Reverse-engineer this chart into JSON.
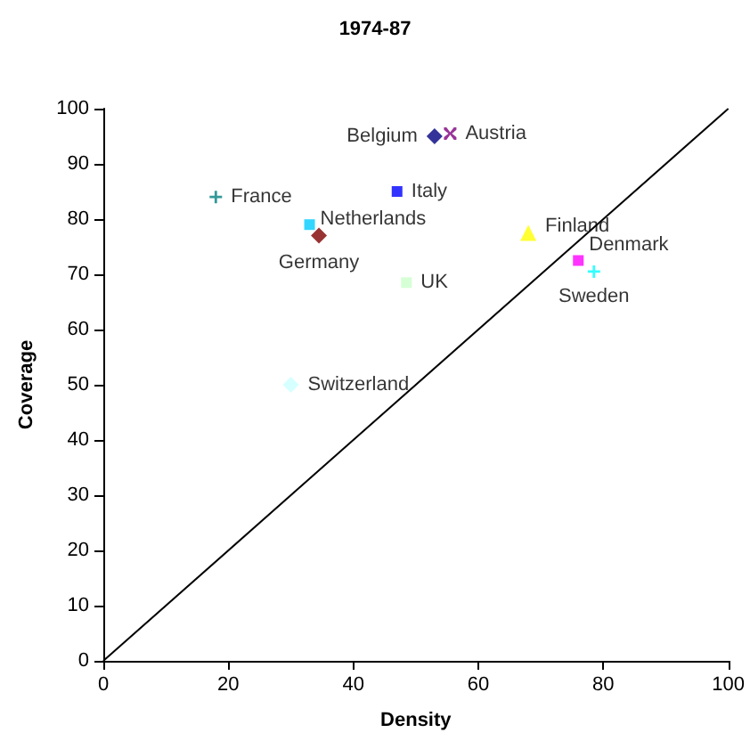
{
  "chart_data": {
    "type": "scatter",
    "title": "1974-87",
    "xlabel": "Density",
    "ylabel": "Coverage",
    "xlim": [
      0,
      100
    ],
    "ylim": [
      0,
      100
    ],
    "xticks": [
      0,
      20,
      40,
      60,
      80,
      100
    ],
    "yticks": [
      0,
      10,
      20,
      30,
      40,
      50,
      60,
      70,
      80,
      90,
      100
    ],
    "grid": false,
    "legend": false,
    "series": [
      {
        "name": "France",
        "color": "#008080",
        "marker": "cross",
        "x": [
          18
        ],
        "values": [
          84
        ]
      },
      {
        "name": "Belgium",
        "color": "#000080",
        "marker": "diamond",
        "x": [
          53
        ],
        "values": [
          95
        ]
      },
      {
        "name": "Austria",
        "color": "#800080",
        "marker": "star",
        "x": [
          55.5
        ],
        "values": [
          95.5
        ]
      },
      {
        "name": "Italy",
        "color": "#0000ff",
        "marker": "square",
        "x": [
          47
        ],
        "values": [
          85
        ]
      },
      {
        "name": "Netherlands",
        "color": "#00ccff",
        "marker": "square",
        "x": [
          33
        ],
        "values": [
          79
        ]
      },
      {
        "name": "Germany",
        "color": "#800000",
        "marker": "diamond",
        "x": [
          34.5
        ],
        "values": [
          77
        ]
      },
      {
        "name": "UK",
        "color": "#ccffcc",
        "marker": "square",
        "x": [
          48.5
        ],
        "values": [
          68.5
        ]
      },
      {
        "name": "Switzerland",
        "color": "#ccffff",
        "marker": "diamond",
        "x": [
          30
        ],
        "values": [
          50
        ]
      },
      {
        "name": "Finland",
        "color": "#ffff00",
        "marker": "triangle",
        "x": [
          68
        ],
        "values": [
          77.5
        ]
      },
      {
        "name": "Denmark",
        "color": "#ff00ff",
        "marker": "square",
        "x": [
          76
        ],
        "values": [
          72.5
        ]
      },
      {
        "name": "Sweden",
        "color": "#00ffff",
        "marker": "cross",
        "x": [
          78.5
        ],
        "values": [
          70.5
        ]
      },
      {
        "type": "line",
        "color": "#000000",
        "marker": "none",
        "line_style": "solid",
        "x": [
          0,
          100
        ],
        "values": [
          0,
          100
        ]
      }
    ]
  }
}
